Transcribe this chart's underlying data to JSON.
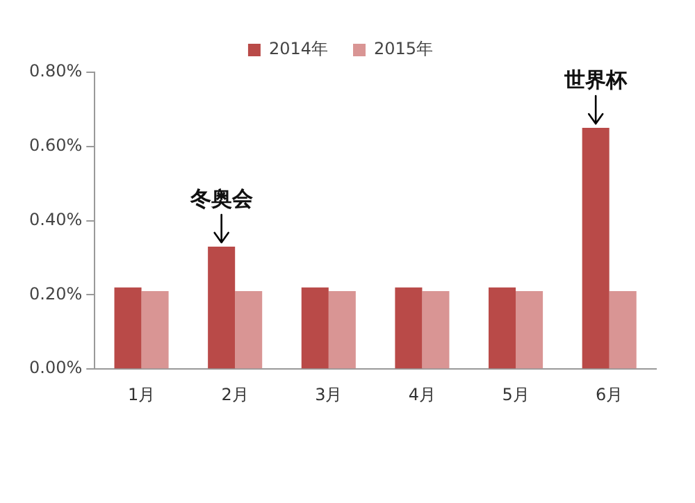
{
  "chart_data": {
    "type": "bar",
    "categories": [
      "1月",
      "2月",
      "3月",
      "4月",
      "5月",
      "6月"
    ],
    "series": [
      {
        "name": "2014年",
        "color": "#b94a48",
        "values": [
          0.22,
          0.33,
          0.22,
          0.22,
          0.22,
          0.65
        ]
      },
      {
        "name": "2015年",
        "color": "#d99594",
        "values": [
          0.21,
          0.21,
          0.21,
          0.21,
          0.21,
          0.21
        ]
      }
    ],
    "ylim": [
      0,
      0.8
    ],
    "yticks": [
      {
        "value": 0,
        "label": "0.00%"
      },
      {
        "value": 0.2,
        "label": "0.20%"
      },
      {
        "value": 0.4,
        "label": "0.40%"
      },
      {
        "value": 0.6,
        "label": "0.60%"
      },
      {
        "value": 0.8,
        "label": "0.80%"
      }
    ],
    "annotations": [
      {
        "text": "冬奥会",
        "x": "2月",
        "y": 0.33
      },
      {
        "text": "世界杯",
        "x": "6月",
        "y": 0.65
      }
    ],
    "legend": "top",
    "grid": false
  }
}
